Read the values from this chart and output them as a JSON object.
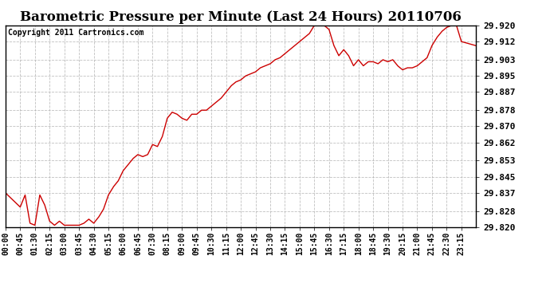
{
  "title": "Barometric Pressure per Minute (Last 24 Hours) 20110706",
  "copyright": "Copyright 2011 Cartronics.com",
  "line_color": "#cc0000",
  "background_color": "#ffffff",
  "plot_bg_color": "#ffffff",
  "grid_color": "#b0b0b0",
  "y_min": 29.82,
  "y_max": 29.92,
  "y_ticks": [
    29.82,
    29.828,
    29.837,
    29.845,
    29.853,
    29.862,
    29.87,
    29.878,
    29.887,
    29.895,
    29.903,
    29.912,
    29.92
  ],
  "x_labels": [
    "00:00",
    "00:45",
    "01:30",
    "02:15",
    "03:00",
    "03:45",
    "04:30",
    "05:15",
    "06:00",
    "06:45",
    "07:30",
    "08:15",
    "09:00",
    "09:45",
    "10:30",
    "11:15",
    "12:00",
    "12:45",
    "13:30",
    "14:15",
    "15:00",
    "15:45",
    "16:30",
    "17:15",
    "18:00",
    "18:45",
    "19:30",
    "20:15",
    "21:00",
    "21:45",
    "22:30",
    "23:15"
  ],
  "title_fontsize": 12,
  "copyright_fontsize": 7,
  "tick_fontsize": 7,
  "line_width": 1.0,
  "key_pressures": {
    "t0_00": 29.837,
    "t0_45": 29.83,
    "t1_00": 29.836,
    "t1_15": 29.822,
    "t1_30": 29.821,
    "t1_45": 29.836,
    "t2_00": 29.831,
    "t2_15": 29.823,
    "t2_30": 29.821,
    "t2_45": 29.823,
    "t3_00": 29.821,
    "t3_15": 29.821,
    "t3_30": 29.821,
    "t3_45": 29.821,
    "t4_00": 29.822,
    "t4_15": 29.824,
    "t4_30": 29.822,
    "t4_45": 29.825,
    "t5_00": 29.829,
    "t5_15": 29.836,
    "t5_30": 29.84,
    "t5_45": 29.843,
    "t6_00": 29.848,
    "t6_15": 29.851,
    "t6_30": 29.854,
    "t6_45": 29.856,
    "t7_00": 29.855,
    "t7_15": 29.856,
    "t7_30": 29.861,
    "t7_45": 29.86,
    "t8_00": 29.865,
    "t8_15": 29.874,
    "t8_30": 29.877,
    "t8_45": 29.876,
    "t9_00": 29.874,
    "t9_15": 29.873,
    "t9_30": 29.876,
    "t9_45": 29.876,
    "t10_00": 29.878,
    "t10_15": 29.878,
    "t10_30": 29.88,
    "t10_45": 29.882,
    "t11_00": 29.884,
    "t11_15": 29.887,
    "t11_30": 29.89,
    "t11_45": 29.892,
    "t12_00": 29.893,
    "t12_15": 29.895,
    "t12_30": 29.896,
    "t12_45": 29.897,
    "t13_00": 29.899,
    "t13_15": 29.9,
    "t13_30": 29.901,
    "t13_45": 29.903,
    "t14_00": 29.904,
    "t14_15": 29.906,
    "t14_30": 29.908,
    "t14_45": 29.91,
    "t15_00": 29.912,
    "t15_15": 29.914,
    "t15_30": 29.916,
    "t15_45": 29.92,
    "t16_00": 29.92,
    "t16_15": 29.92,
    "t16_30": 29.918,
    "t16_45": 29.91,
    "t17_00": 29.905,
    "t17_15": 29.908,
    "t17_30": 29.905,
    "t17_45": 29.9,
    "t18_00": 29.903,
    "t18_15": 29.9,
    "t18_30": 29.902,
    "t18_45": 29.902,
    "t19_00": 29.901,
    "t19_15": 29.903,
    "t19_30": 29.902,
    "t19_45": 29.903,
    "t20_00": 29.9,
    "t20_15": 29.898,
    "t20_30": 29.899,
    "t20_45": 29.899,
    "t21_00": 29.9,
    "t21_15": 29.902,
    "t21_30": 29.904,
    "t21_45": 29.91,
    "t22_00": 29.914,
    "t22_15": 29.917,
    "t22_30": 29.919,
    "t22_45": 29.92,
    "t23_00": 29.92,
    "t23_15": 29.912
  }
}
